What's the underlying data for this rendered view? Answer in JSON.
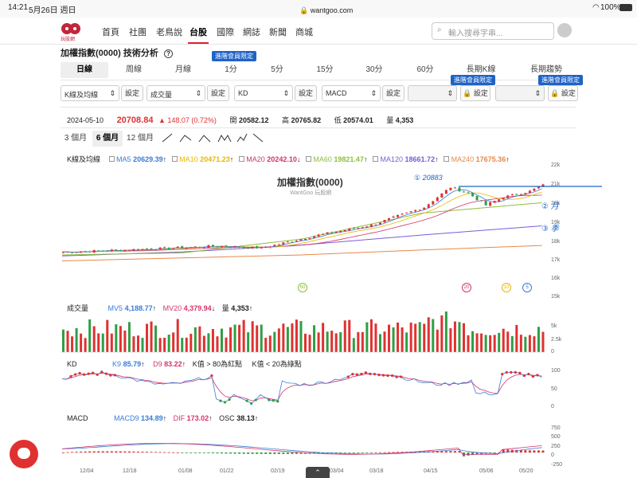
{
  "status": {
    "time": "14:21",
    "date": "5月26日 週日",
    "url": "wantgoo.com",
    "battery": "100%"
  },
  "logo": {
    "text": "玩股網"
  },
  "nav": [
    "首頁",
    "社團",
    "老鳥說",
    "台股",
    "國際",
    "網誌",
    "新聞",
    "商城"
  ],
  "search": {
    "placeholder": "輸入搜尋字串..."
  },
  "page_title": "加權指數(0000) 技術分析",
  "member_badge": "進階會員限定",
  "period_tabs": [
    "日線",
    "周線",
    "月線",
    "1分",
    "5分",
    "15分",
    "30分",
    "60分",
    "長期K線",
    "長期趨勢"
  ],
  "indicator_selects": [
    "K線及均線",
    "成交量",
    "KD",
    "MACD"
  ],
  "set_label": "設定",
  "quote": {
    "date": "2024-05-10",
    "price": "20708.84",
    "change": "▲ 148.07 (0.72%)",
    "open_label": "開",
    "open": "20582.12",
    "high_label": "高",
    "high": "20765.82",
    "low_label": "低",
    "low": "20574.01",
    "vol_label": "量",
    "vol": "4,353"
  },
  "range_tabs": [
    "3 個月",
    "6 個月",
    "12 個月"
  ],
  "kline_legend": {
    "label": "K線及均線",
    "items": [
      {
        "name": "MA5",
        "value": "20629.39",
        "color": "#3a7bd5"
      },
      {
        "name": "MA10",
        "value": "20471.23",
        "color": "#e6b800"
      },
      {
        "name": "MA20",
        "value": "20242.10",
        "color": "#d6336c"
      },
      {
        "name": "MA60",
        "value": "19821.47",
        "color": "#8bbf3a"
      },
      {
        "name": "MA120",
        "value": "18661.72",
        "color": "#7b5cd6"
      },
      {
        "name": "MA240",
        "value": "17675.36",
        "color": "#e8874a"
      }
    ]
  },
  "chart_title": "加權指數(0000)",
  "chart_watermark": "WantGoo 玩股網",
  "price_ticks": [
    "22k",
    "21k",
    "20k",
    "19k",
    "18k",
    "17k",
    "16k",
    "15k"
  ],
  "markers": [
    "60",
    "20",
    "10",
    "5"
  ],
  "annotations": [
    "① 20883",
    "② 月",
    "③ 季"
  ],
  "volume_legend": {
    "label": "成交量",
    "mv5_label": "MV5",
    "mv5": "4,188.77",
    "mv20_label": "MV20",
    "mv20": "4,379.94",
    "vol_label": "量",
    "vol": "4,353"
  },
  "volume_ticks": [
    "5k",
    "2.5k",
    "0"
  ],
  "kd_legend": {
    "label": "KD",
    "k_label": "K9",
    "k": "85.79",
    "d_label": "D9",
    "d": "83.22",
    "note1": "K值 > 80為紅點",
    "note2": "K值 < 20為綠點"
  },
  "kd_ticks": [
    "100",
    "50",
    "0"
  ],
  "macd_legend": {
    "label": "MACD",
    "macd_label": "MACD9",
    "macd": "134.89",
    "dif_label": "DIF",
    "dif": "173.02",
    "osc_label": "OSC",
    "osc": "38.13"
  },
  "macd_ticks": [
    "750",
    "500",
    "250",
    "0",
    "-250"
  ],
  "x_ticks": [
    "12/04",
    "12/18",
    "01/08",
    "01/22",
    "02/19",
    "03/04",
    "03/18",
    "04/15",
    "05/06",
    "05/20"
  ],
  "colors": {
    "up": "#e03131",
    "down": "#2f9e44",
    "accent": "#d23",
    "badge": "#1f63c7"
  },
  "chart_data": {
    "type": "line",
    "title": "加權指數(0000)",
    "ylim": [
      15000,
      22000
    ],
    "series": [
      {
        "name": "MA240",
        "x": [
          "12/04",
          "01/08",
          "02/19",
          "04/15",
          "05/20"
        ],
        "values": [
          16900,
          17050,
          17200,
          17450,
          17675
        ]
      },
      {
        "name": "MA120",
        "x": [
          "12/04",
          "01/08",
          "02/19",
          "04/15",
          "05/20"
        ],
        "values": [
          17150,
          17350,
          17700,
          18200,
          18660
        ]
      },
      {
        "name": "MA60",
        "x": [
          "12/04",
          "01/08",
          "02/19",
          "04/15",
          "05/20"
        ],
        "values": [
          17200,
          17300,
          18000,
          19300,
          19820
        ]
      }
    ]
  }
}
